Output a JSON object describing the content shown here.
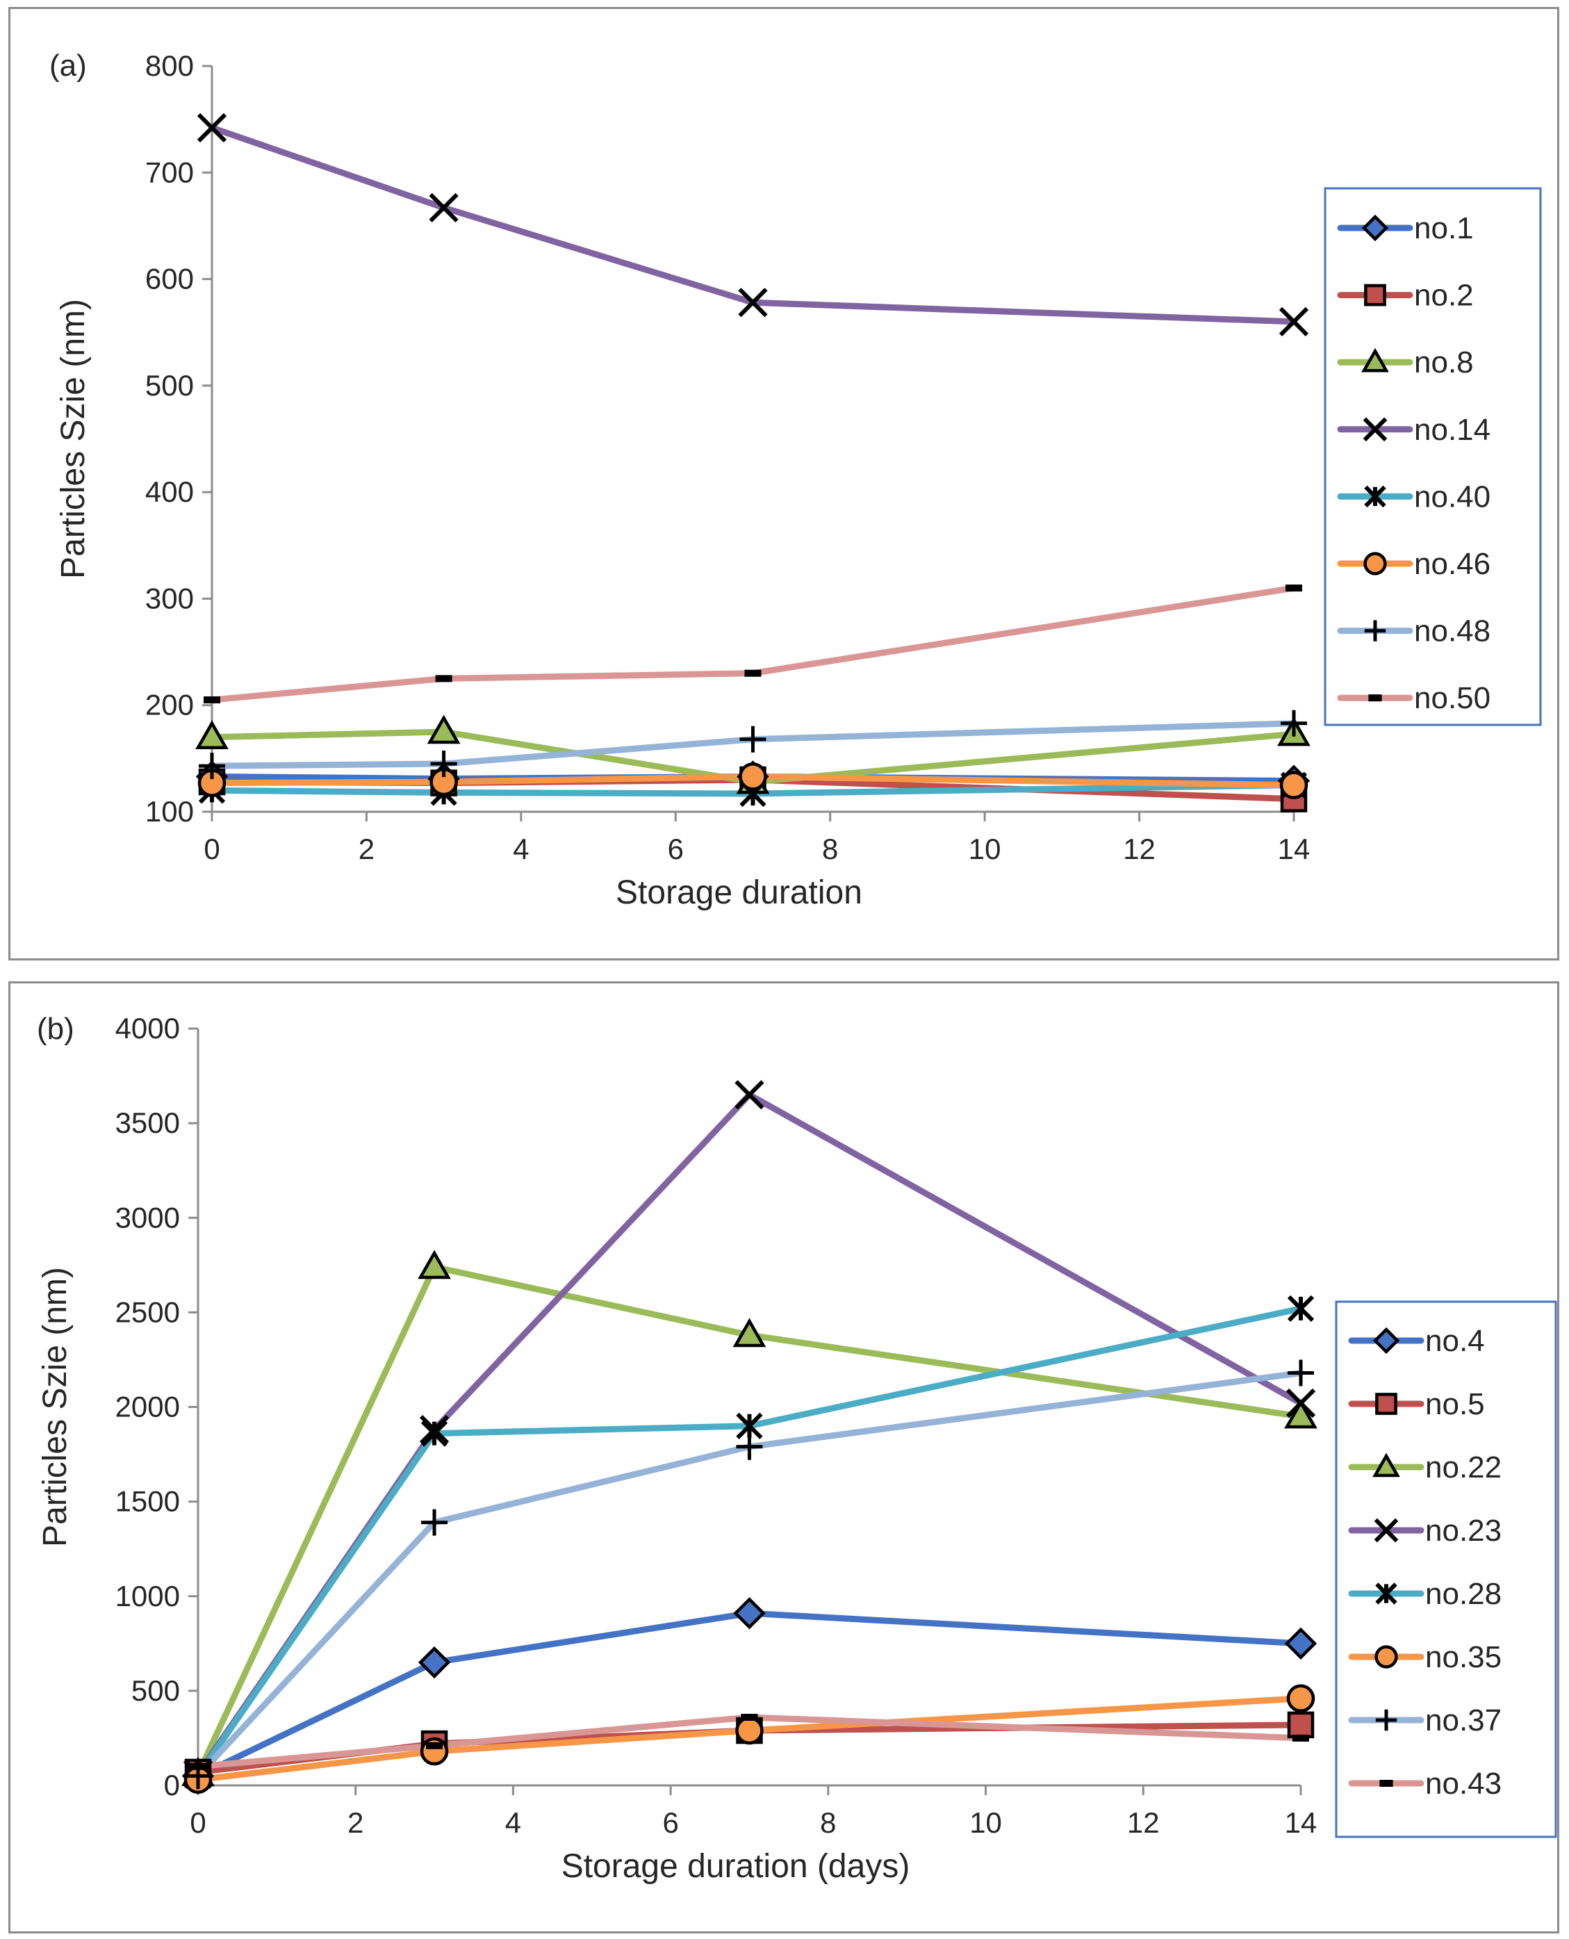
{
  "chart_data": [
    {
      "panel": "(a)",
      "type": "line",
      "xlabel": "Storage duration",
      "ylabel": "Particles Szie (nm)",
      "xlim": [
        0,
        14
      ],
      "ylim": [
        100,
        800
      ],
      "xticks": [
        0,
        2,
        4,
        6,
        8,
        10,
        12,
        14
      ],
      "yticks": [
        100,
        200,
        300,
        400,
        500,
        600,
        700,
        800
      ],
      "x": [
        0,
        3,
        7,
        14
      ],
      "legend_position": "right",
      "series": [
        {
          "name": "no.1",
          "marker": "diamond",
          "color": "#4472c4",
          "values": [
            133,
            131,
            133,
            129
          ]
        },
        {
          "name": "no.2",
          "marker": "square",
          "color": "#c0504d",
          "values": [
            128,
            127,
            130,
            112
          ]
        },
        {
          "name": "no.8",
          "marker": "triangle",
          "color": "#9bbb59",
          "values": [
            170,
            175,
            128,
            173
          ]
        },
        {
          "name": "no.14",
          "marker": "x",
          "color": "#8064a2",
          "values": [
            742,
            667,
            578,
            560
          ]
        },
        {
          "name": "no.40",
          "marker": "star",
          "color": "#4bacc6",
          "values": [
            120,
            118,
            117,
            125
          ]
        },
        {
          "name": "no.46",
          "marker": "circle",
          "color": "#f79646",
          "values": [
            127,
            128,
            133,
            125
          ]
        },
        {
          "name": "no.48",
          "marker": "plus",
          "color": "#95b3d7",
          "values": [
            143,
            145,
            168,
            183
          ]
        },
        {
          "name": "no.50",
          "marker": "dash",
          "color": "#d99694",
          "values": [
            205,
            225,
            230,
            310
          ]
        }
      ]
    },
    {
      "panel": "(b)",
      "type": "line",
      "xlabel": "Storage duration (days)",
      "ylabel": "Particles Szie (nm)",
      "xlim": [
        0,
        14
      ],
      "ylim": [
        0,
        4000
      ],
      "xticks": [
        0,
        2,
        4,
        6,
        8,
        10,
        12,
        14
      ],
      "yticks": [
        0,
        500,
        1000,
        1500,
        2000,
        2500,
        3000,
        3500,
        4000
      ],
      "x": [
        0,
        3,
        7,
        14
      ],
      "legend_position": "right",
      "series": [
        {
          "name": "no.4",
          "marker": "diamond",
          "color": "#4472c4",
          "values": [
            50,
            650,
            910,
            750
          ]
        },
        {
          "name": "no.5",
          "marker": "square",
          "color": "#c0504d",
          "values": [
            70,
            220,
            290,
            320
          ]
        },
        {
          "name": "no.22",
          "marker": "triangle",
          "color": "#9bbb59",
          "values": [
            60,
            2740,
            2380,
            1950
          ]
        },
        {
          "name": "no.23",
          "marker": "x",
          "color": "#8064a2",
          "values": [
            60,
            1880,
            3650,
            2020
          ]
        },
        {
          "name": "no.28",
          "marker": "star",
          "color": "#4bacc6",
          "values": [
            50,
            1860,
            1900,
            2520
          ]
        },
        {
          "name": "no.35",
          "marker": "circle",
          "color": "#f79646",
          "values": [
            30,
            180,
            290,
            460
          ]
        },
        {
          "name": "no.37",
          "marker": "plus",
          "color": "#95b3d7",
          "values": [
            50,
            1390,
            1790,
            2180
          ]
        },
        {
          "name": "no.43",
          "marker": "dash",
          "color": "#d99694",
          "values": [
            100,
            210,
            360,
            250
          ]
        }
      ]
    }
  ]
}
